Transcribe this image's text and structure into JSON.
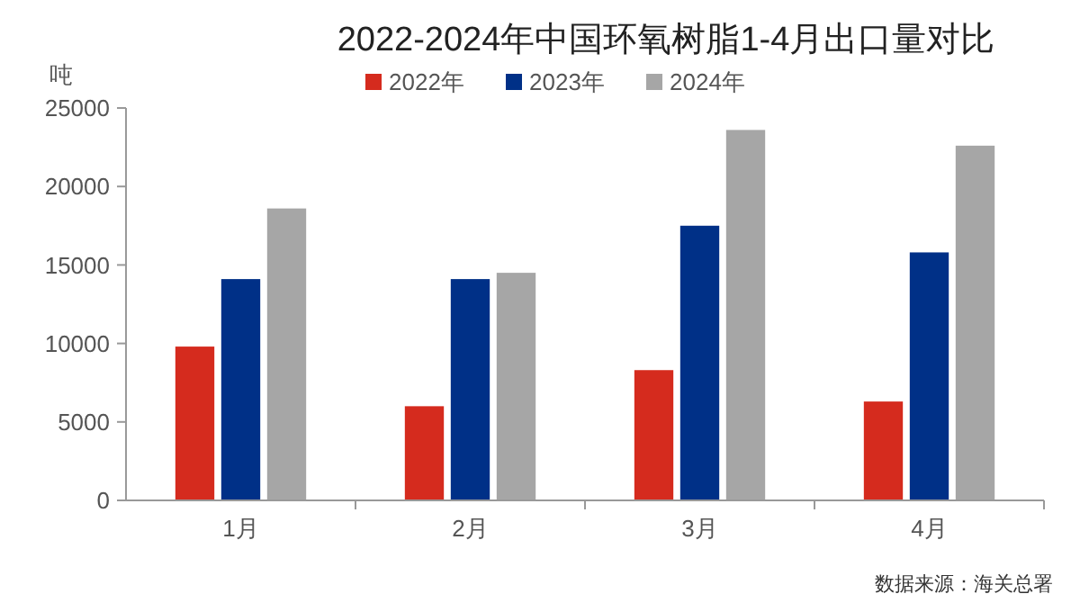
{
  "chart_data": {
    "type": "bar",
    "title": "2022-2024年中国环氧树脂1-4月出口量对比",
    "ylabel": "吨",
    "categories": [
      "1月",
      "2月",
      "3月",
      "4月"
    ],
    "series": [
      {
        "name": "2022年",
        "color": "#d52b1e",
        "values": [
          9800,
          6000,
          8300,
          6300
        ]
      },
      {
        "name": "2023年",
        "color": "#003087",
        "values": [
          14100,
          14100,
          17500,
          15800
        ]
      },
      {
        "name": "2024年",
        "color": "#a6a6a6",
        "values": [
          18600,
          14500,
          23600,
          22600
        ]
      }
    ],
    "ylim": [
      0,
      25000
    ],
    "yticks": [
      0,
      5000,
      10000,
      15000,
      20000,
      25000
    ],
    "legend": "top",
    "annotations": [
      "数据来源：海关总署"
    ]
  }
}
